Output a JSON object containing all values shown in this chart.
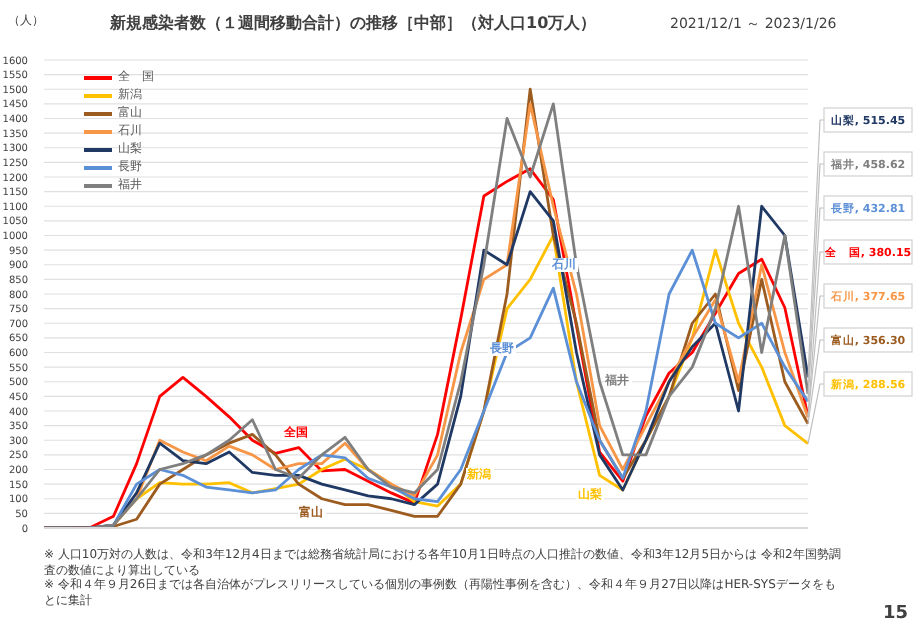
{
  "chart_data": {
    "type": "line",
    "title": "新規感染者数（１週間移動合計）の推移［中部］（対人口10万人）",
    "subtitle": "2021/12/1 ～ 2023/1/26",
    "ylabel": "（人）",
    "categories": [
      null,
      null,
      null,
      null,
      null,
      null,
      null,
      null,
      null,
      null,
      null,
      null,
      null,
      null,
      null,
      null,
      null,
      null,
      null,
      null,
      null,
      null,
      null,
      null,
      null,
      null,
      null,
      null,
      null,
      null,
      null,
      null,
      null,
      null
    ],
    "series": [
      {
        "name": "全　国",
        "color": "#ff0000",
        "values": [
          0,
          0,
          2,
          40,
          220,
          450,
          515,
          450,
          380,
          300,
          255,
          275,
          195,
          200,
          160,
          120,
          85,
          320,
          715,
          1135,
          1185,
          1228,
          1123,
          691,
          259,
          160,
          383,
          530,
          600,
          734,
          870,
          919,
          753,
          380.15
        ],
        "value_labels": [
          null,
          null,
          null,
          null,
          null,
          null,
          null,
          null,
          null,
          null,
          null,
          null,
          null,
          null,
          null,
          null,
          null,
          null,
          null,
          null,
          null,
          null,
          null,
          null,
          null,
          null,
          null,
          null,
          null,
          null,
          null,
          null,
          null,
          "全　国, 380.15"
        ]
      },
      {
        "name": "新潟",
        "color": "#ffc000",
        "values": [
          null,
          null,
          null,
          10,
          100,
          155,
          150,
          150,
          155,
          120,
          135,
          150,
          200,
          235,
          200,
          150,
          90,
          75,
          150,
          400,
          750,
          850,
          1000,
          500,
          180,
          130,
          300,
          450,
          650,
          950,
          700,
          550,
          350,
          288.56
        ],
        "value_labels": [
          null,
          null,
          null,
          null,
          null,
          null,
          null,
          null,
          null,
          null,
          null,
          null,
          null,
          null,
          null,
          null,
          null,
          null,
          null,
          null,
          null,
          null,
          null,
          null,
          null,
          null,
          null,
          null,
          null,
          null,
          null,
          null,
          null,
          "新潟, 288.56"
        ]
      },
      {
        "name": "富山",
        "color": "#9c5b1f",
        "values": [
          0,
          0,
          0,
          5,
          30,
          150,
          200,
          250,
          290,
          320,
          250,
          150,
          100,
          80,
          80,
          60,
          40,
          40,
          150,
          400,
          800,
          1500,
          1000,
          700,
          300,
          170,
          300,
          450,
          700,
          800,
          470,
          850,
          500,
          356.3
        ],
        "value_labels": [
          null,
          null,
          null,
          null,
          null,
          null,
          null,
          null,
          null,
          null,
          null,
          null,
          null,
          null,
          null,
          null,
          null,
          null,
          null,
          null,
          null,
          null,
          null,
          null,
          null,
          null,
          null,
          null,
          null,
          null,
          null,
          null,
          null,
          "富山, 356.30"
        ]
      },
      {
        "name": "石川",
        "color": "#f79646",
        "values": [
          null,
          null,
          0,
          10,
          100,
          300,
          260,
          230,
          280,
          250,
          200,
          220,
          220,
          290,
          200,
          150,
          110,
          250,
          600,
          850,
          900,
          1450,
          1100,
          800,
          350,
          200,
          350,
          500,
          650,
          780,
          500,
          900,
          600,
          377.65
        ],
        "value_labels": [
          null,
          null,
          null,
          null,
          null,
          null,
          null,
          null,
          null,
          null,
          null,
          null,
          null,
          null,
          null,
          null,
          null,
          null,
          null,
          null,
          null,
          null,
          null,
          null,
          null,
          null,
          null,
          null,
          null,
          null,
          null,
          null,
          null,
          "石川, 377.65"
        ]
      },
      {
        "name": "山梨",
        "color": "#1f3864",
        "values": [
          0,
          0,
          0,
          10,
          120,
          290,
          230,
          220,
          260,
          190,
          180,
          180,
          150,
          130,
          110,
          100,
          80,
          150,
          450,
          950,
          900,
          1150,
          1050,
          600,
          250,
          130,
          300,
          500,
          620,
          700,
          400,
          1100,
          1000,
          515.45
        ],
        "value_labels": [
          null,
          null,
          null,
          null,
          null,
          null,
          null,
          null,
          null,
          null,
          null,
          null,
          null,
          null,
          null,
          null,
          null,
          null,
          null,
          null,
          null,
          null,
          null,
          null,
          null,
          null,
          null,
          null,
          null,
          null,
          null,
          null,
          null,
          "山梨, 515.45"
        ]
      },
      {
        "name": "長野",
        "color": "#5b8fd6",
        "values": [
          null,
          null,
          0,
          10,
          150,
          200,
          180,
          140,
          130,
          120,
          130,
          200,
          250,
          240,
          170,
          140,
          100,
          90,
          200,
          400,
          600,
          650,
          820,
          500,
          300,
          170,
          400,
          800,
          950,
          700,
          650,
          700,
          550,
          432.81
        ],
        "value_labels": [
          null,
          null,
          null,
          null,
          null,
          null,
          null,
          null,
          null,
          null,
          null,
          null,
          null,
          null,
          null,
          null,
          null,
          null,
          null,
          null,
          null,
          null,
          null,
          null,
          null,
          null,
          null,
          null,
          null,
          null,
          null,
          null,
          null,
          "長野, 432.81"
        ]
      },
      {
        "name": "福井",
        "color": "#7f7f7f",
        "values": [
          0,
          0,
          0,
          10,
          100,
          200,
          220,
          250,
          300,
          370,
          200,
          170,
          250,
          310,
          200,
          140,
          120,
          200,
          500,
          900,
          1400,
          1200,
          1450,
          900,
          500,
          250,
          250,
          450,
          550,
          750,
          1100,
          600,
          1000,
          458.62
        ],
        "value_labels": [
          null,
          null,
          null,
          null,
          null,
          null,
          null,
          null,
          null,
          null,
          null,
          null,
          null,
          null,
          null,
          null,
          null,
          null,
          null,
          null,
          null,
          null,
          null,
          null,
          null,
          null,
          null,
          null,
          null,
          null,
          null,
          null,
          null,
          "福井, 458.62"
        ]
      }
    ],
    "ylim": [
      0,
      1600
    ],
    "yticks": [
      0,
      50,
      100,
      150,
      200,
      250,
      300,
      350,
      400,
      450,
      500,
      550,
      600,
      650,
      700,
      750,
      800,
      850,
      900,
      950,
      1000,
      1050,
      1100,
      1150,
      1200,
      1250,
      1300,
      1350,
      1400,
      1450,
      1500,
      1550,
      1600
    ],
    "grid": "y",
    "legend": "top left",
    "marker": "none",
    "line_style": "solid",
    "annotations": [
      "全国",
      "富山",
      "新潟",
      "山梨",
      "長野",
      "石川",
      "福井",
      "※ 人口10万対の人数は、令和3年12月4日までは総務省統計局における各年10月1日時点の人口推計の数値、令和3年12月5日からは 令和2年国勢調査の数値により算出している",
      "※ 令和４年９月26日までは各自治体がプレスリリースしている個別の事例数（再陽性事例を含む）、令和４年９月27日以降はHER-SYSデータをもとに集計",
      "15"
    ]
  }
}
